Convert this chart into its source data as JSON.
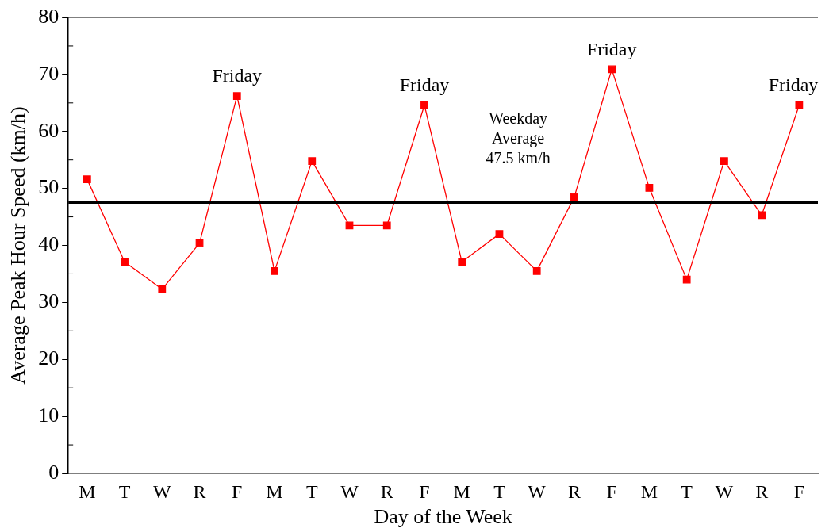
{
  "chart_data": {
    "type": "line",
    "xlabel": "Day of the Week",
    "ylabel": "Average Peak Hour Speed (km/h)",
    "categories": [
      "M",
      "T",
      "W",
      "R",
      "F",
      "M",
      "T",
      "W",
      "R",
      "F",
      "M",
      "T",
      "W",
      "R",
      "F",
      "M",
      "T",
      "W",
      "R",
      "F"
    ],
    "series": [
      {
        "color": "#ff0000",
        "values": [
          51.6,
          37.1,
          32.3,
          40.4,
          66.2,
          35.5,
          54.8,
          43.5,
          43.5,
          64.6,
          37.1,
          42,
          35.5,
          48.5,
          70.9,
          50.1,
          34,
          54.8,
          45.3,
          64.6
        ]
      }
    ],
    "ylim": [
      0,
      80
    ],
    "yticks": [
      0,
      10,
      20,
      30,
      40,
      50,
      60,
      70,
      80
    ],
    "ref_lines": [
      {
        "axis": "y",
        "value": 47.5,
        "label": "Weekday\nAverage\n47.5 km/h",
        "color": "#000000"
      }
    ],
    "annotations": [
      "Friday",
      "Friday",
      "Friday",
      "Friday"
    ],
    "marker": "square",
    "line_style": "solid",
    "grid": false,
    "legend": false
  }
}
